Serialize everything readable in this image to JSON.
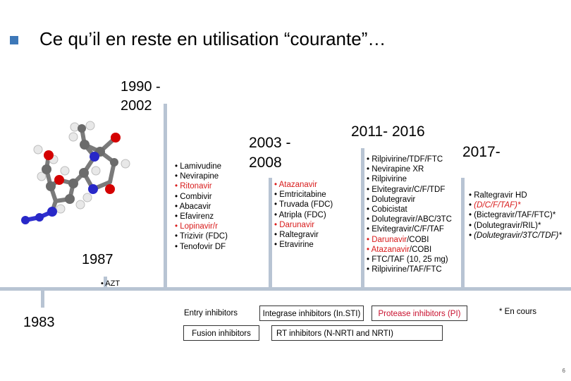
{
  "slide": {
    "title": "Ce qu’il en reste en utilisation “courante”…",
    "page_number": "6",
    "footnote": "* En cours"
  },
  "eras": {
    "y1983": {
      "label": "1983"
    },
    "y1987": {
      "label": "1987",
      "drugs": [
        "• AZT"
      ]
    },
    "y1990": {
      "label_line1": "1990 -",
      "label_line2": "2002",
      "drugs": [
        {
          "text": "• Lamivudine",
          "color": "black"
        },
        {
          "text": "• Nevirapine",
          "color": "black"
        },
        {
          "text": "• Ritonavir",
          "color": "red"
        },
        {
          "text": "• Combivir",
          "color": "black"
        },
        {
          "text": "• Abacavir",
          "color": "black"
        },
        {
          "text": "• Efavirenz",
          "color": "black"
        },
        {
          "text": "• Lopinavir/r",
          "color": "red"
        },
        {
          "text": "• Trizivir (FDC)",
          "color": "black"
        },
        {
          "text": "• Tenofovir DF",
          "color": "black"
        }
      ]
    },
    "y2003": {
      "label_line1": "2003 -",
      "label_line2": "2008",
      "drugs": [
        {
          "text": "• Atazanavir",
          "color": "red"
        },
        {
          "text": "• Emtricitabine",
          "color": "black"
        },
        {
          "text": "• Truvada (FDC)",
          "color": "black"
        },
        {
          "text": "• Atripla (FDC)",
          "color": "black"
        },
        {
          "text": "• Darunavir",
          "color": "red"
        },
        {
          "text": "• Raltegravir",
          "color": "black"
        },
        {
          "text": "• Etravirine",
          "color": "black"
        }
      ]
    },
    "y2011": {
      "label": "2011- 2016",
      "drugs": [
        {
          "parts": [
            {
              "t": "• Rilpivirine/TDF/FTC",
              "c": "black"
            }
          ]
        },
        {
          "parts": [
            {
              "t": "• Nevirapine XR",
              "c": "black"
            }
          ]
        },
        {
          "parts": [
            {
              "t": "• Rilpivirine",
              "c": "black"
            }
          ]
        },
        {
          "parts": [
            {
              "t": "• Elvitegravir",
              "c": "black"
            },
            {
              "t": "/C/F/TDF",
              "c": "black"
            }
          ]
        },
        {
          "parts": [
            {
              "t": "• Dolutegravir",
              "c": "black"
            }
          ]
        },
        {
          "parts": [
            {
              "t": "• Cobicistat",
              "c": "black"
            }
          ]
        },
        {
          "parts": [
            {
              "t": "• Dolutegravir/ABC/3TC",
              "c": "black"
            }
          ]
        },
        {
          "parts": [
            {
              "t": "• Elvitegravir/C/F/TAF",
              "c": "black"
            }
          ]
        },
        {
          "parts": [
            {
              "t": "• Darunavir",
              "c": "red"
            },
            {
              "t": "/COBI",
              "c": "black"
            }
          ]
        },
        {
          "parts": [
            {
              "t": "• Atazanavir",
              "c": "red"
            },
            {
              "t": "/COBI",
              "c": "black"
            }
          ]
        },
        {
          "parts": [
            {
              "t": "• FTC/TAF (10, 25 mg)",
              "c": "black"
            }
          ]
        },
        {
          "parts": [
            {
              "t": "• Rilpivirine/TAF/FTC",
              "c": "black"
            }
          ]
        }
      ]
    },
    "y2017": {
      "label": "2017-",
      "drugs": [
        {
          "parts": [
            {
              "t": "• Raltegravir HD",
              "c": "black",
              "i": false
            }
          ]
        },
        {
          "parts": [
            {
              "t": "• ",
              "c": "black",
              "i": false
            },
            {
              "t": "(D/C/F/TAF)*",
              "c": "red",
              "i": true
            }
          ]
        },
        {
          "parts": [
            {
              "t": "• (Bictegravir/TAF/FTC)*",
              "c": "black",
              "i": false
            }
          ]
        },
        {
          "parts": [
            {
              "t": "• (Dolutegravir/RIL)*",
              "c": "black",
              "i": false
            }
          ]
        },
        {
          "parts": [
            {
              "t": "• (Dolutegravir/3TC/TDF)*",
              "c": "black",
              "i": true
            }
          ]
        }
      ]
    }
  },
  "legend": {
    "entry": "Entry inhibitors",
    "fusion": "Fusion inhibitors",
    "integrase": "Integrase inhibitors (In.STI)",
    "protease": "Protease inhibitors (PI)",
    "rt": "RT inhibitors (N-NRTI and NRTI)"
  },
  "colors": {
    "accent": "#3d78b8",
    "timeline": "#b8c4d3",
    "red": "#d81b1b",
    "ball_gray": "#6b6b6b",
    "ball_red": "#d40000",
    "ball_blue": "#2828c8"
  }
}
